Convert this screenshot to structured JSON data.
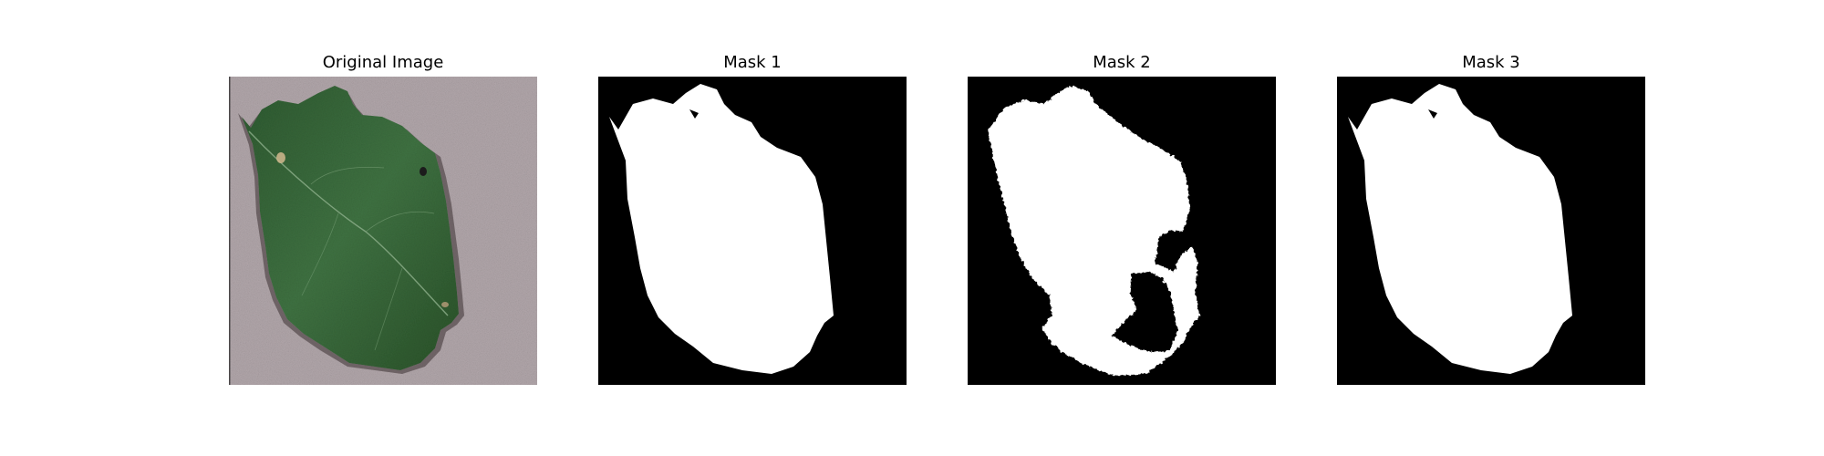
{
  "figure": {
    "background_color": "#ffffff",
    "panels": [
      {
        "title": "Original Image",
        "content": "green leaf photograph on gray textured background"
      },
      {
        "title": "Mask 1",
        "content": "binary segmentation mask: white leaf on black"
      },
      {
        "title": "Mask 2",
        "content": "binary segmentation mask: white leaf with black holes on black"
      },
      {
        "title": "Mask 3",
        "content": "binary segmentation mask: white leaf on black"
      }
    ],
    "colors": {
      "mask_foreground": "#ffffff",
      "mask_background": "#000000",
      "leaf_green": "#3f7040",
      "leaf_green_dark": "#1f4222",
      "background_gray": "#ada2a6"
    }
  }
}
